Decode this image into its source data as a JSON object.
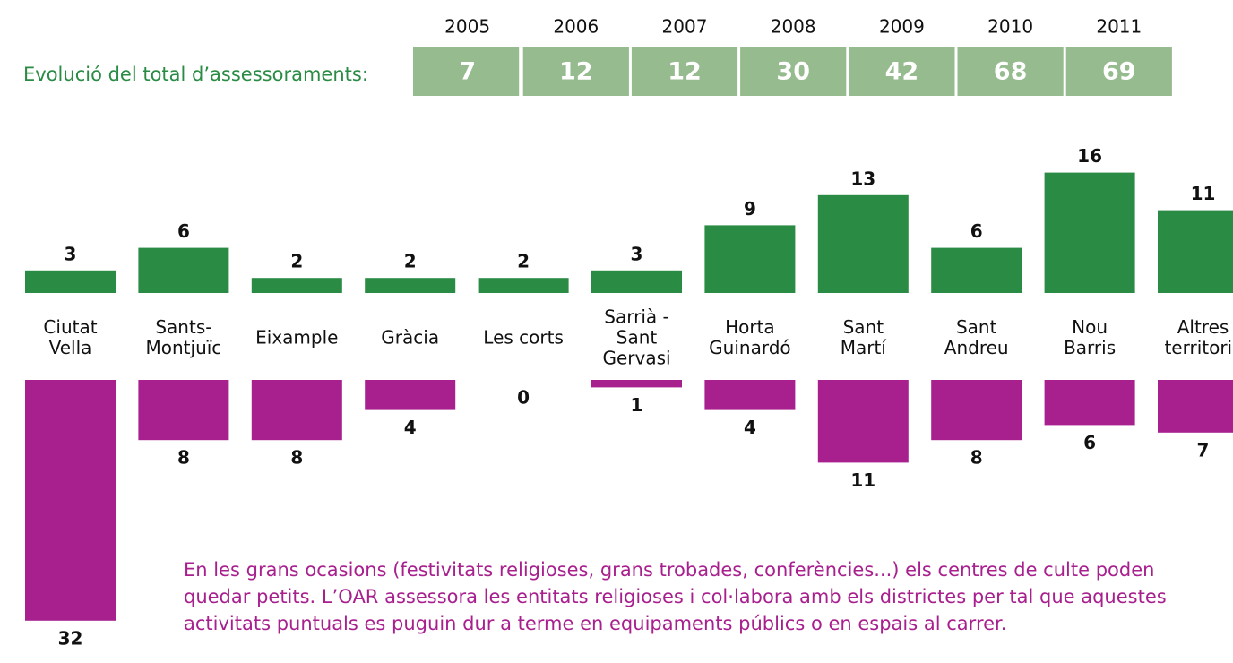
{
  "header": {
    "label": "Evolució del total d’assessoraments:",
    "years": [
      "2005",
      "2006",
      "2007",
      "2008",
      "2009",
      "2010",
      "2011"
    ],
    "values": [
      7,
      12,
      12,
      30,
      42,
      68,
      69
    ],
    "color": "#95bb8e"
  },
  "chart_data": {
    "type": "bar",
    "layout": "diverging",
    "categories": [
      [
        "Ciutat",
        "Vella"
      ],
      [
        "Sants-",
        "Montjuïc"
      ],
      [
        "Eixample"
      ],
      [
        "Gràcia"
      ],
      [
        "Les corts"
      ],
      [
        "Sarrià -",
        "Sant",
        "Gervasi"
      ],
      [
        "Horta",
        "Guinardó"
      ],
      [
        "Sant",
        "Martí"
      ],
      [
        "Sant",
        "Andreu"
      ],
      [
        "Nou",
        "Barris"
      ],
      [
        "Altres",
        "territoris"
      ]
    ],
    "series": [
      {
        "color": "#2a8c44",
        "values": [
          3,
          6,
          2,
          2,
          2,
          3,
          9,
          13,
          6,
          16,
          11
        ]
      },
      {
        "color": "#a8208e",
        "values": [
          32,
          8,
          8,
          4,
          0,
          1,
          4,
          11,
          8,
          6,
          7
        ]
      }
    ]
  },
  "footnote": [
    "En les grans ocasions (festivitats religioses, grans trobades, conferències...) els centres de culte poden",
    "quedar petits. L’OAR assessora les entitats religioses i col·labora amb els districtes per tal que aquestes",
    "activitats puntuals es puguin dur a terme en equipaments públics o en espais al carrer."
  ]
}
